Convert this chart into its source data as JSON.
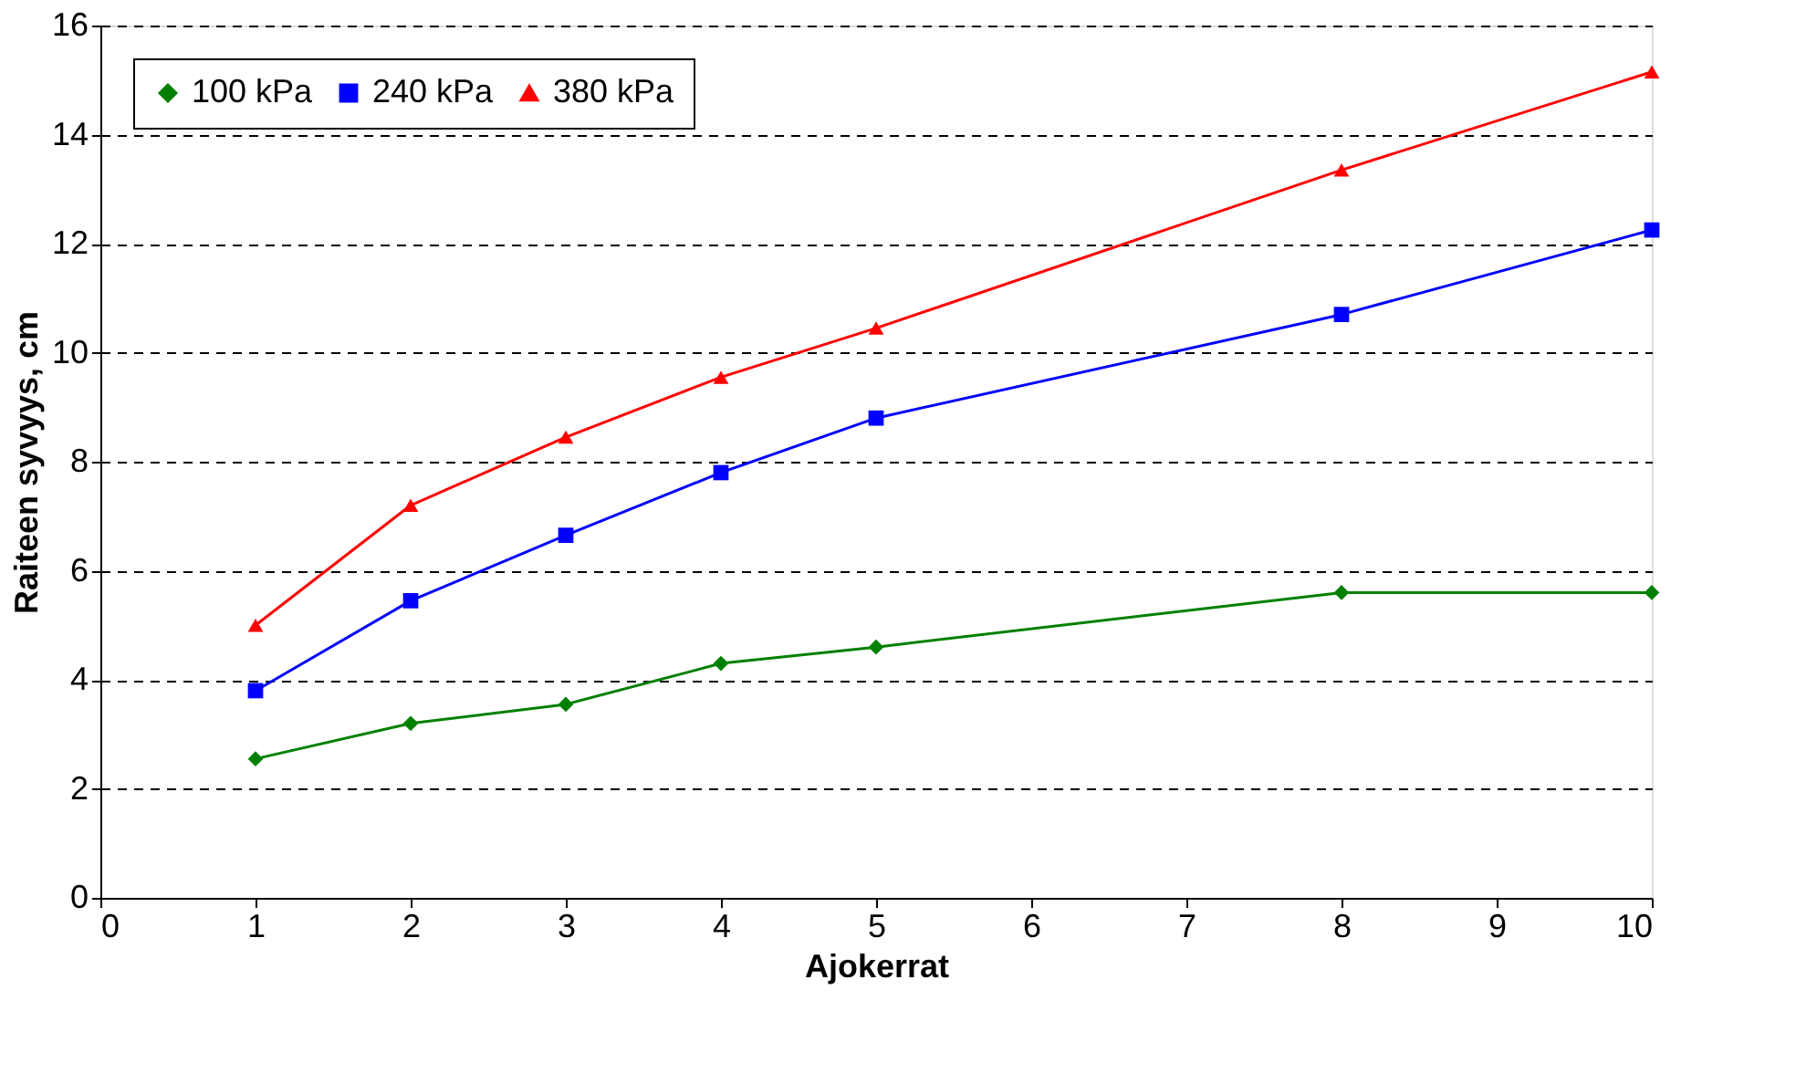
{
  "chart_data": {
    "type": "line",
    "xlabel": "Ajokerrat",
    "ylabel": "Raiteen syvyys, cm",
    "x": [
      1,
      2,
      3,
      4,
      5,
      8,
      10
    ],
    "series": [
      {
        "name": "100 kPa",
        "color": "#008000",
        "marker": "diamond",
        "values": [
          2.55,
          3.2,
          3.55,
          4.3,
          4.6,
          5.6,
          5.6
        ]
      },
      {
        "name": "240 kPa",
        "color": "#0000ff",
        "marker": "square",
        "values": [
          3.8,
          5.45,
          6.65,
          7.8,
          8.8,
          10.7,
          12.25
        ]
      },
      {
        "name": "380 kPa",
        "color": "#ff0000",
        "marker": "triangle",
        "values": [
          5.0,
          7.2,
          8.45,
          9.55,
          10.45,
          13.35,
          15.15
        ]
      }
    ],
    "xlim": [
      0,
      10
    ],
    "xticks": [
      0,
      1,
      2,
      3,
      4,
      5,
      6,
      7,
      8,
      9,
      10
    ],
    "ylim": [
      0,
      16
    ],
    "yticks": [
      0,
      2,
      4,
      6,
      8,
      10,
      12,
      14,
      16
    ],
    "grid": "y",
    "legend": "top left",
    "line_style": "solid"
  }
}
